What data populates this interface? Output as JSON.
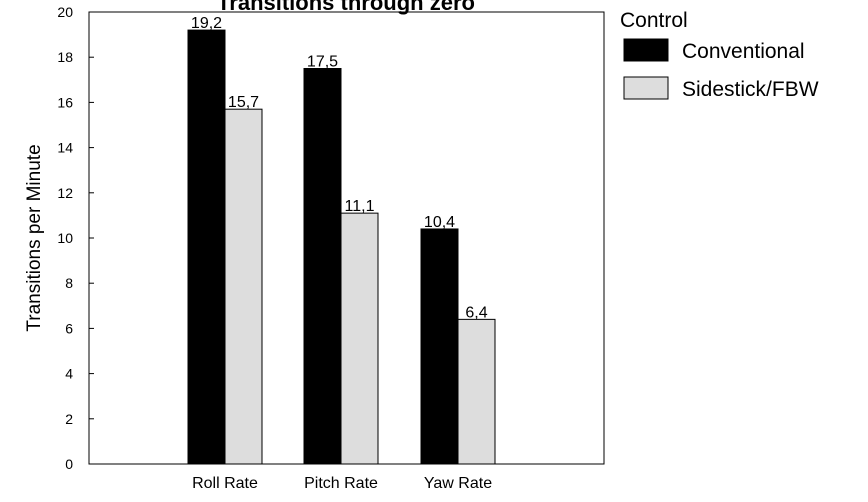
{
  "chart_data": {
    "type": "bar",
    "title": "Transitions through zero",
    "xlabel": "",
    "ylabel": "Transitions per Minute",
    "categories": [
      "Roll Rate",
      "Pitch Rate",
      "Yaw Rate"
    ],
    "series": [
      {
        "name": "Conventional",
        "values": [
          19.2,
          17.5,
          10.4
        ],
        "labels": [
          "19,2",
          "17,5",
          "10,4"
        ],
        "color": "#000000"
      },
      {
        "name": "Sidestick/FBW",
        "values": [
          15.7,
          11.1,
          6.4
        ],
        "labels": [
          "15,7",
          "11,1",
          "6,4"
        ],
        "color": "#dddddd"
      }
    ],
    "ylim": [
      0,
      20
    ],
    "yticks": [
      0,
      2,
      4,
      6,
      8,
      10,
      12,
      14,
      16,
      18,
      20
    ],
    "grid": false,
    "legend": {
      "title": "Control",
      "placement": "right"
    }
  }
}
